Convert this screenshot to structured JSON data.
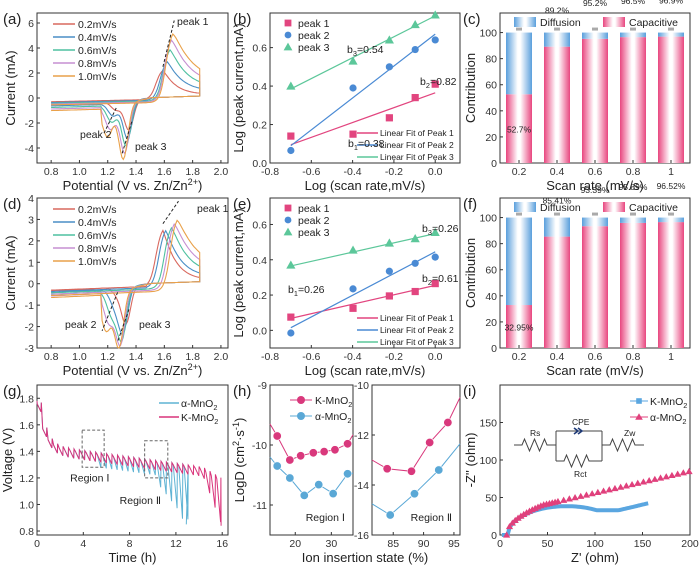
{
  "figure": {
    "panels": [
      "(a)",
      "(b)",
      "(c)",
      "(d)",
      "(e)",
      "(f)",
      "(g)",
      "(h)",
      "(i)"
    ]
  },
  "chart_data": [
    {
      "id": "a",
      "panel_label": "(a)",
      "type": "line",
      "title": "",
      "xlabel": "Potential (V vs. Zn/Zn2+)",
      "ylabel": "Current (mA)",
      "xlim": [
        0.7,
        2.05
      ],
      "ylim": [
        -5.2,
        6.8
      ],
      "xticks": [
        0.8,
        1.0,
        1.2,
        1.4,
        1.6,
        1.8,
        2.0
      ],
      "yticks": [
        -4,
        -2,
        0,
        2,
        4,
        6
      ],
      "legend_position": "top-left",
      "series": [
        {
          "name": "0.2mV/s",
          "color": "#d9695f",
          "anodic_peak": [
            1.59,
            2.5
          ],
          "cathodic_peaks": [
            [
              1.26,
              -0.8
            ],
            [
              1.35,
              -2.4
            ]
          ]
        },
        {
          "name": "0.4mV/s",
          "color": "#4a8ec6",
          "anodic_peak": [
            1.62,
            3.3
          ],
          "cathodic_peaks": [
            [
              1.24,
              -1.2
            ],
            [
              1.34,
              -3.0
            ]
          ]
        },
        {
          "name": "0.6mV/s",
          "color": "#4fc0a0",
          "anodic_peak": [
            1.64,
            4.4
          ],
          "cathodic_peaks": [
            [
              1.23,
              -1.6
            ],
            [
              1.33,
              -3.5
            ]
          ]
        },
        {
          "name": "0.8mV/s",
          "color": "#c68fd2",
          "anodic_peak": [
            1.65,
            5.3
          ],
          "cathodic_peaks": [
            [
              1.22,
              -2.1
            ],
            [
              1.32,
              -4.0
            ]
          ]
        },
        {
          "name": "1.0mV/s",
          "color": "#e9a14a",
          "anodic_peak": [
            1.66,
            5.9
          ],
          "cathodic_peaks": [
            [
              1.2,
              -2.6
            ],
            [
              1.31,
              -4.4
            ]
          ]
        }
      ],
      "annotations": [
        "peak 1",
        "peak 2",
        "peak 3"
      ]
    },
    {
      "id": "b",
      "panel_label": "(b)",
      "type": "scatter",
      "xlabel": "Log (scan rate,mV/s)",
      "ylabel": "Log (peak current,mA)",
      "xlim": [
        -0.8,
        0.12
      ],
      "ylim": [
        0.0,
        0.78
      ],
      "xticks": [
        -0.8,
        -0.6,
        -0.4,
        -0.2,
        0.0
      ],
      "yticks": [
        0.0,
        0.2,
        0.4,
        0.6
      ],
      "x": [
        -0.699,
        -0.398,
        -0.222,
        -0.097,
        0.0
      ],
      "series": [
        {
          "name": "peak 1",
          "marker": "square",
          "color": "#e2457f",
          "values": [
            0.14,
            0.15,
            0.235,
            0.34,
            0.41
          ],
          "fit": [
            0.095,
            0.365
          ],
          "fit_name": "Linear Fit of Peak 1",
          "slope_label": "b1=0.38"
        },
        {
          "name": "peak 2",
          "marker": "circle",
          "color": "#4a8ad4",
          "values": [
            0.065,
            0.39,
            0.5,
            0.59,
            0.64
          ],
          "fit": [
            0.09,
            0.67
          ],
          "fit_name": "Linear Fit of Peak 2",
          "slope_label": "b2=0.82"
        },
        {
          "name": "peak 3",
          "marker": "triangle",
          "color": "#5cc79a",
          "values": [
            0.4,
            0.53,
            0.64,
            0.72,
            0.77
          ],
          "fit": [
            0.385,
            0.765
          ],
          "fit_name": "Linear Fit of Peak 3",
          "slope_label": "b3=0.54"
        }
      ],
      "legend_position": "top-left"
    },
    {
      "id": "c",
      "panel_label": "(c)",
      "type": "bar",
      "stacked": true,
      "xlabel": "Scan rate (mV/s)",
      "ylabel": "Contribution",
      "categories": [
        "0.2",
        "0.4",
        "0.6",
        "0.8",
        "1"
      ],
      "ylim": [
        0,
        115
      ],
      "yticks": [
        0,
        20,
        40,
        60,
        80,
        100
      ],
      "series": [
        {
          "name": "Capacitive",
          "color": "#e8467f",
          "values": [
            52.7,
            89.2,
            95.2,
            96.5,
            96.9
          ]
        },
        {
          "name": "Diffusion",
          "color": "#5a9fdc",
          "values": [
            47.3,
            10.8,
            4.8,
            3.5,
            3.1
          ]
        }
      ],
      "data_labels": [
        "52.7%",
        "89.2%",
        "95.2%",
        "96.5%",
        "96.9%"
      ],
      "legend_position": "top"
    },
    {
      "id": "d",
      "panel_label": "(d)",
      "type": "line",
      "xlabel": "Potential (V vs. Zn/Zn2+)",
      "ylabel": "Current (mA)",
      "xlim": [
        0.7,
        2.05
      ],
      "ylim": [
        -3,
        4
      ],
      "xticks": [
        0.8,
        1.0,
        1.2,
        1.4,
        1.6,
        1.8,
        2.0
      ],
      "yticks": [
        -3,
        -2,
        -1,
        0,
        1,
        2,
        3,
        4
      ],
      "legend_position": "top-left",
      "series": [
        {
          "name": "0.2mV/s",
          "color": "#d9695f",
          "anodic_peak": [
            1.59,
            2.8
          ],
          "cathodic_peaks": [
            [
              1.27,
              -0.4
            ],
            [
              1.33,
              -1.7
            ]
          ]
        },
        {
          "name": "0.4mV/s",
          "color": "#4a8ec6",
          "anodic_peak": [
            1.61,
            2.85
          ],
          "cathodic_peaks": [
            [
              1.25,
              -0.9
            ],
            [
              1.31,
              -2.0
            ]
          ]
        },
        {
          "name": "0.6mV/s",
          "color": "#4fc0a0",
          "anodic_peak": [
            1.65,
            3.05
          ],
          "cathodic_peaks": [
            [
              1.23,
              -1.3
            ],
            [
              1.3,
              -2.3
            ]
          ]
        },
        {
          "name": "0.8mV/s",
          "color": "#c68fd2",
          "anodic_peak": [
            1.67,
            3.3
          ],
          "cathodic_peaks": [
            [
              1.21,
              -1.6
            ],
            [
              1.29,
              -2.5
            ]
          ]
        },
        {
          "name": "1.0mV/s",
          "color": "#e9a14a",
          "anodic_peak": [
            1.69,
            3.55
          ],
          "cathodic_peaks": [
            [
              1.19,
              -1.9
            ],
            [
              1.28,
              -2.6
            ]
          ]
        }
      ],
      "annotations": [
        "peak 1",
        "peak 2",
        "peak 3"
      ]
    },
    {
      "id": "e",
      "panel_label": "(e)",
      "type": "scatter",
      "xlabel": "Log (scan rate,mV/s)",
      "ylabel": "Log (peak current,mA)",
      "xlim": [
        -0.8,
        0.12
      ],
      "ylim": [
        -0.1,
        0.75
      ],
      "xticks": [
        -0.8,
        -0.6,
        -0.4,
        -0.2,
        0.0
      ],
      "yticks": [
        0.0,
        0.2,
        0.4,
        0.6
      ],
      "x": [
        -0.699,
        -0.398,
        -0.222,
        -0.097,
        0.0
      ],
      "series": [
        {
          "name": "peak 1",
          "marker": "square",
          "color": "#e2457f",
          "values": [
            0.075,
            0.125,
            0.195,
            0.22,
            0.265
          ],
          "fit": [
            0.068,
            0.255
          ],
          "fit_name": "Linear Fit of Peak 1",
          "slope_label": "b1=0.26"
        },
        {
          "name": "peak 2",
          "marker": "circle",
          "color": "#4a8ad4",
          "values": [
            -0.015,
            0.235,
            0.335,
            0.38,
            0.415
          ],
          "fit": [
            0.015,
            0.445
          ],
          "fit_name": "Linear Fit of Peak 2",
          "slope_label": "b2=0.61"
        },
        {
          "name": "peak 3",
          "marker": "triangle",
          "color": "#5cc79a",
          "values": [
            0.37,
            0.455,
            0.495,
            0.52,
            0.555
          ],
          "fit": [
            0.365,
            0.548
          ],
          "fit_name": "Linear Fit of Peak 3",
          "slope_label": "b3=0.26"
        }
      ],
      "legend_position": "top-left"
    },
    {
      "id": "f",
      "panel_label": "(f)",
      "type": "bar",
      "stacked": true,
      "xlabel": "Scan rate (mV/s)",
      "ylabel": "Contribution",
      "categories": [
        "0.2",
        "0.4",
        "0.6",
        "0.8",
        "1"
      ],
      "ylim": [
        0,
        115
      ],
      "yticks": [
        0,
        20,
        40,
        60,
        80,
        100
      ],
      "series": [
        {
          "name": "Capacitive",
          "color": "#e8467f",
          "values": [
            32.95,
            85.41,
            93.39,
            95.89,
            96.52
          ]
        },
        {
          "name": "Diffusion",
          "color": "#5a9fdc",
          "values": [
            67.05,
            14.59,
            6.61,
            4.11,
            3.48
          ]
        }
      ],
      "data_labels": [
        "32.95%",
        "85.41%",
        "93.39%",
        "95.89%",
        "96.52%"
      ],
      "legend_position": "top"
    },
    {
      "id": "g",
      "panel_label": "(g)",
      "type": "line",
      "xlabel": "Time (h)",
      "ylabel": "Voltage (V)",
      "xlim": [
        0,
        16.5
      ],
      "ylim": [
        0.77,
        1.9
      ],
      "xticks": [
        0,
        4,
        8,
        12,
        16
      ],
      "yticks": [
        0.8,
        1.0,
        1.2,
        1.4,
        1.6,
        1.8
      ],
      "series": [
        {
          "name": "α-MnO2",
          "color": "#5fb3d4",
          "end_time": 12.9,
          "end_voltage": 0.85
        },
        {
          "name": "K-MnO2",
          "color": "#d9337a",
          "end_time": 15.9,
          "end_voltage": 0.84
        }
      ],
      "regions": [
        {
          "label": "Region Ⅰ",
          "x": [
            3.9,
            5.8
          ],
          "y": [
            1.28,
            1.56
          ]
        },
        {
          "label": "Region Ⅱ",
          "x": [
            9.3,
            11.3
          ],
          "y": [
            1.2,
            1.48
          ]
        }
      ],
      "legend_position": "top-right"
    },
    {
      "id": "h",
      "panel_label": "(h)",
      "type": "line",
      "xlabel": "Ion insertion state (%)",
      "ylabel": "LogD (cm2·s-1)",
      "subplots": [
        {
          "label": "Region Ⅰ",
          "xlim": [
            13,
            36
          ],
          "ylim": [
            -11.5,
            -9
          ],
          "xticks": [
            20,
            30
          ],
          "yticks": [
            -11,
            -10,
            -9
          ],
          "series": [
            {
              "name": "K-MnO2",
              "color": "#d9387c",
              "x": [
                13,
                15,
                18.5,
                21.5,
                25,
                28,
                31,
                34.5,
                36
              ],
              "y": [
                -9.65,
                -9.85,
                -10.25,
                -10.18,
                -10.13,
                -10.11,
                -10.08,
                -9.98,
                -9.83
              ]
            },
            {
              "name": "α-MnO2",
              "color": "#5aa8d6",
              "x": [
                13,
                15,
                18.5,
                22.5,
                26.5,
                30.5,
                34.5,
                36
              ],
              "y": [
                -10.2,
                -10.35,
                -10.55,
                -10.84,
                -10.66,
                -10.81,
                -10.48,
                -10.47
              ]
            }
          ]
        },
        {
          "label": "Region Ⅱ",
          "xlim": [
            81.5,
            96
          ],
          "ylim": [
            -16,
            -10
          ],
          "xticks": [
            85,
            90,
            95
          ],
          "yticks": [
            -16,
            -14,
            -12,
            -10
          ],
          "series": [
            {
              "name": "K-MnO2",
              "color": "#d9387c",
              "x": [
                81.5,
                84,
                88,
                91,
                94,
                96
              ],
              "y": [
                -13.0,
                -13.35,
                -13.45,
                -12.3,
                -11.5,
                -10.5
              ]
            },
            {
              "name": "α-MnO2",
              "color": "#5aa8d6",
              "x": [
                81.5,
                84.5,
                88.5,
                92.5,
                96
              ],
              "y": [
                -14.75,
                -15.2,
                -14.35,
                -13.4,
                -12.35
              ]
            }
          ]
        }
      ],
      "legend_position": "top-left"
    },
    {
      "id": "i",
      "panel_label": "(i)",
      "type": "scatter",
      "xlabel": "Z' (ohm)",
      "ylabel": "-Z'' (ohm)",
      "xlim": [
        0,
        200
      ],
      "ylim": [
        0,
        200
      ],
      "xticks": [
        0,
        50,
        100,
        150,
        200
      ],
      "yticks": [
        0,
        50,
        100,
        150
      ],
      "series": [
        {
          "name": "K-MnO2",
          "marker": "square",
          "color": "#5aa6e0",
          "z_real_range": [
            2,
            157
          ],
          "max_z_imag": 43
        },
        {
          "name": "α-MnO2",
          "marker": "triangle",
          "color": "#e0407c",
          "z_real_range": [
            7,
            200
          ],
          "max_z_imag": 85
        }
      ],
      "inset": {
        "labels": [
          "Rs",
          "CPE",
          "Rct",
          "Zw"
        ]
      },
      "legend_position": "top-right"
    }
  ]
}
